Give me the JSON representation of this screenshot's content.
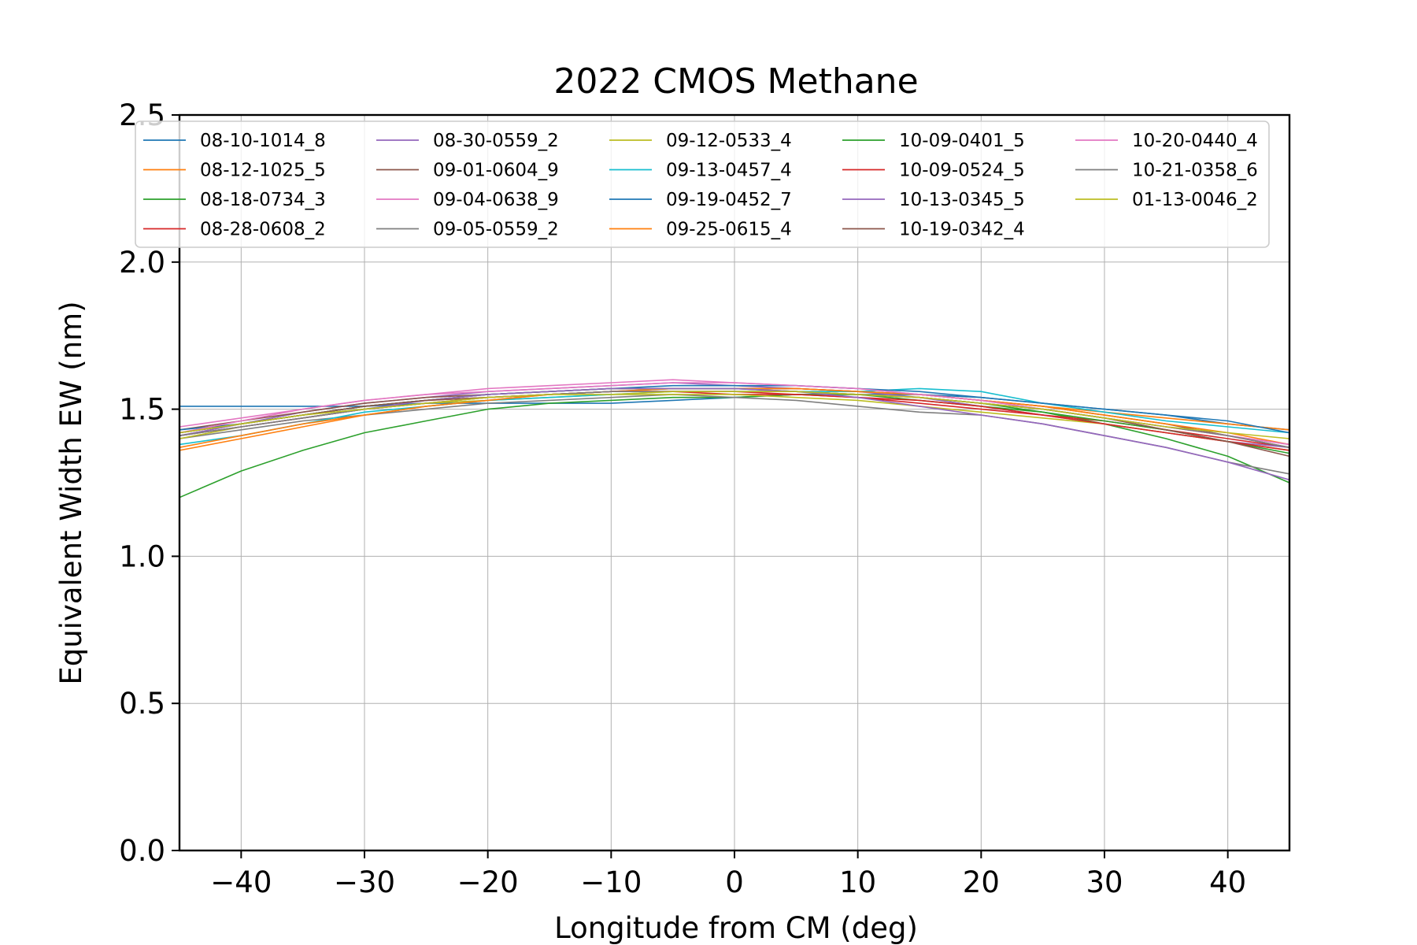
{
  "chart_data": {
    "type": "line",
    "title": "2022 CMOS Methane",
    "xlabel": "Longitude from CM (deg)",
    "ylabel": "Equivalent Width EW (nm)",
    "xlim": [
      -45,
      45
    ],
    "ylim": [
      0.0,
      2.5
    ],
    "xticks": [
      -40,
      -30,
      -20,
      -10,
      0,
      10,
      20,
      30,
      40
    ],
    "xtick_labels": [
      "−40",
      "−30",
      "−20",
      "−10",
      "0",
      "10",
      "20",
      "30",
      "40"
    ],
    "yticks": [
      0.0,
      0.5,
      1.0,
      1.5,
      2.0,
      2.5
    ],
    "ytick_labels": [
      "0.0",
      "0.5",
      "1.0",
      "1.5",
      "2.0",
      "2.5"
    ],
    "grid": true,
    "legend_placement": "upper center",
    "legend_columns": 5,
    "x": [
      -45,
      -40,
      -35,
      -30,
      -25,
      -20,
      -15,
      -10,
      -5,
      0,
      5,
      10,
      15,
      20,
      25,
      30,
      35,
      40,
      45
    ],
    "series": [
      {
        "name": "08-10-1014_8",
        "color": "#1f77b4",
        "values": [
          1.51,
          1.51,
          1.51,
          1.51,
          1.52,
          1.52,
          1.52,
          1.52,
          1.53,
          1.54,
          1.55,
          1.55,
          1.55,
          1.54,
          1.52,
          1.5,
          1.48,
          1.45,
          1.43
        ]
      },
      {
        "name": "08-12-1025_5",
        "color": "#ff7f0e",
        "values": [
          1.36,
          1.4,
          1.44,
          1.48,
          1.51,
          1.53,
          1.55,
          1.56,
          1.57,
          1.57,
          1.57,
          1.56,
          1.55,
          1.53,
          1.51,
          1.49,
          1.47,
          1.45,
          1.43
        ]
      },
      {
        "name": "08-18-0734_3",
        "color": "#2ca02c",
        "values": [
          1.2,
          1.29,
          1.36,
          1.42,
          1.46,
          1.5,
          1.52,
          1.53,
          1.54,
          1.54,
          1.55,
          1.55,
          1.54,
          1.52,
          1.49,
          1.45,
          1.4,
          1.34,
          1.25
        ]
      },
      {
        "name": "08-28-0608_2",
        "color": "#d62728",
        "values": [
          1.42,
          1.45,
          1.48,
          1.51,
          1.53,
          1.54,
          1.55,
          1.56,
          1.56,
          1.55,
          1.55,
          1.54,
          1.52,
          1.5,
          1.48,
          1.46,
          1.43,
          1.4,
          1.37
        ]
      },
      {
        "name": "08-30-0559_2",
        "color": "#9467bd",
        "values": [
          1.41,
          1.45,
          1.49,
          1.52,
          1.54,
          1.56,
          1.57,
          1.58,
          1.59,
          1.58,
          1.57,
          1.56,
          1.54,
          1.51,
          1.48,
          1.45,
          1.42,
          1.39,
          1.37
        ]
      },
      {
        "name": "09-01-0604_9",
        "color": "#8c564b",
        "values": [
          1.43,
          1.46,
          1.49,
          1.52,
          1.54,
          1.55,
          1.56,
          1.57,
          1.57,
          1.57,
          1.57,
          1.56,
          1.55,
          1.53,
          1.51,
          1.48,
          1.45,
          1.41,
          1.37
        ]
      },
      {
        "name": "09-04-0638_9",
        "color": "#e377c2",
        "values": [
          1.44,
          1.47,
          1.5,
          1.53,
          1.55,
          1.56,
          1.57,
          1.58,
          1.59,
          1.59,
          1.58,
          1.57,
          1.55,
          1.53,
          1.5,
          1.47,
          1.44,
          1.41,
          1.38
        ]
      },
      {
        "name": "09-05-0559_2",
        "color": "#7f7f7f",
        "values": [
          1.4,
          1.43,
          1.46,
          1.48,
          1.5,
          1.52,
          1.53,
          1.54,
          1.55,
          1.54,
          1.53,
          1.51,
          1.49,
          1.48,
          1.45,
          1.41,
          1.37,
          1.32,
          1.28
        ]
      },
      {
        "name": "09-12-0533_4",
        "color": "#bcbd22",
        "values": [
          1.4,
          1.44,
          1.47,
          1.5,
          1.52,
          1.53,
          1.54,
          1.55,
          1.55,
          1.55,
          1.54,
          1.53,
          1.51,
          1.49,
          1.47,
          1.45,
          1.42,
          1.39,
          1.36
        ]
      },
      {
        "name": "09-13-0457_4",
        "color": "#17becf",
        "values": [
          1.38,
          1.41,
          1.45,
          1.49,
          1.51,
          1.53,
          1.54,
          1.55,
          1.56,
          1.56,
          1.56,
          1.56,
          1.57,
          1.56,
          1.52,
          1.49,
          1.46,
          1.44,
          1.42
        ]
      },
      {
        "name": "09-19-0452_7",
        "color": "#1f77b4",
        "values": [
          1.43,
          1.45,
          1.48,
          1.51,
          1.53,
          1.55,
          1.56,
          1.57,
          1.58,
          1.58,
          1.58,
          1.57,
          1.56,
          1.54,
          1.52,
          1.5,
          1.48,
          1.46,
          1.42
        ]
      },
      {
        "name": "09-25-0615_4",
        "color": "#ff7f0e",
        "values": [
          1.37,
          1.41,
          1.45,
          1.48,
          1.51,
          1.53,
          1.55,
          1.56,
          1.57,
          1.57,
          1.57,
          1.56,
          1.55,
          1.53,
          1.51,
          1.48,
          1.45,
          1.42,
          1.38
        ]
      },
      {
        "name": "10-09-0401_5",
        "color": "#2ca02c",
        "values": [
          1.42,
          1.45,
          1.48,
          1.51,
          1.53,
          1.55,
          1.56,
          1.57,
          1.57,
          1.57,
          1.56,
          1.55,
          1.53,
          1.51,
          1.49,
          1.46,
          1.43,
          1.39,
          1.35
        ]
      },
      {
        "name": "10-09-0524_5",
        "color": "#d62728",
        "values": [
          1.41,
          1.44,
          1.47,
          1.5,
          1.52,
          1.54,
          1.55,
          1.56,
          1.56,
          1.56,
          1.55,
          1.54,
          1.53,
          1.51,
          1.48,
          1.45,
          1.42,
          1.39,
          1.36
        ]
      },
      {
        "name": "10-13-0345_5",
        "color": "#9467bd",
        "values": [
          1.41,
          1.44,
          1.47,
          1.5,
          1.53,
          1.55,
          1.56,
          1.57,
          1.57,
          1.57,
          1.56,
          1.54,
          1.51,
          1.48,
          1.45,
          1.41,
          1.37,
          1.32,
          1.26
        ]
      },
      {
        "name": "10-19-0342_4",
        "color": "#8c564b",
        "values": [
          1.42,
          1.45,
          1.48,
          1.51,
          1.53,
          1.54,
          1.55,
          1.56,
          1.56,
          1.56,
          1.56,
          1.55,
          1.54,
          1.52,
          1.5,
          1.47,
          1.43,
          1.39,
          1.34
        ]
      },
      {
        "name": "10-20-0440_4",
        "color": "#e377c2",
        "values": [
          1.42,
          1.46,
          1.5,
          1.53,
          1.55,
          1.57,
          1.58,
          1.59,
          1.6,
          1.59,
          1.58,
          1.57,
          1.55,
          1.53,
          1.5,
          1.47,
          1.44,
          1.41,
          1.38
        ]
      },
      {
        "name": "10-21-0358_6",
        "color": "#7f7f7f",
        "values": [
          1.41,
          1.44,
          1.47,
          1.5,
          1.52,
          1.54,
          1.55,
          1.56,
          1.56,
          1.56,
          1.56,
          1.55,
          1.54,
          1.52,
          1.5,
          1.47,
          1.44,
          1.41,
          1.37
        ]
      },
      {
        "name": "01-13-0046_2",
        "color": "#bcbd22",
        "values": [
          1.42,
          1.45,
          1.48,
          1.5,
          1.52,
          1.54,
          1.55,
          1.55,
          1.56,
          1.56,
          1.56,
          1.55,
          1.54,
          1.52,
          1.5,
          1.47,
          1.44,
          1.42,
          1.4
        ]
      }
    ]
  }
}
